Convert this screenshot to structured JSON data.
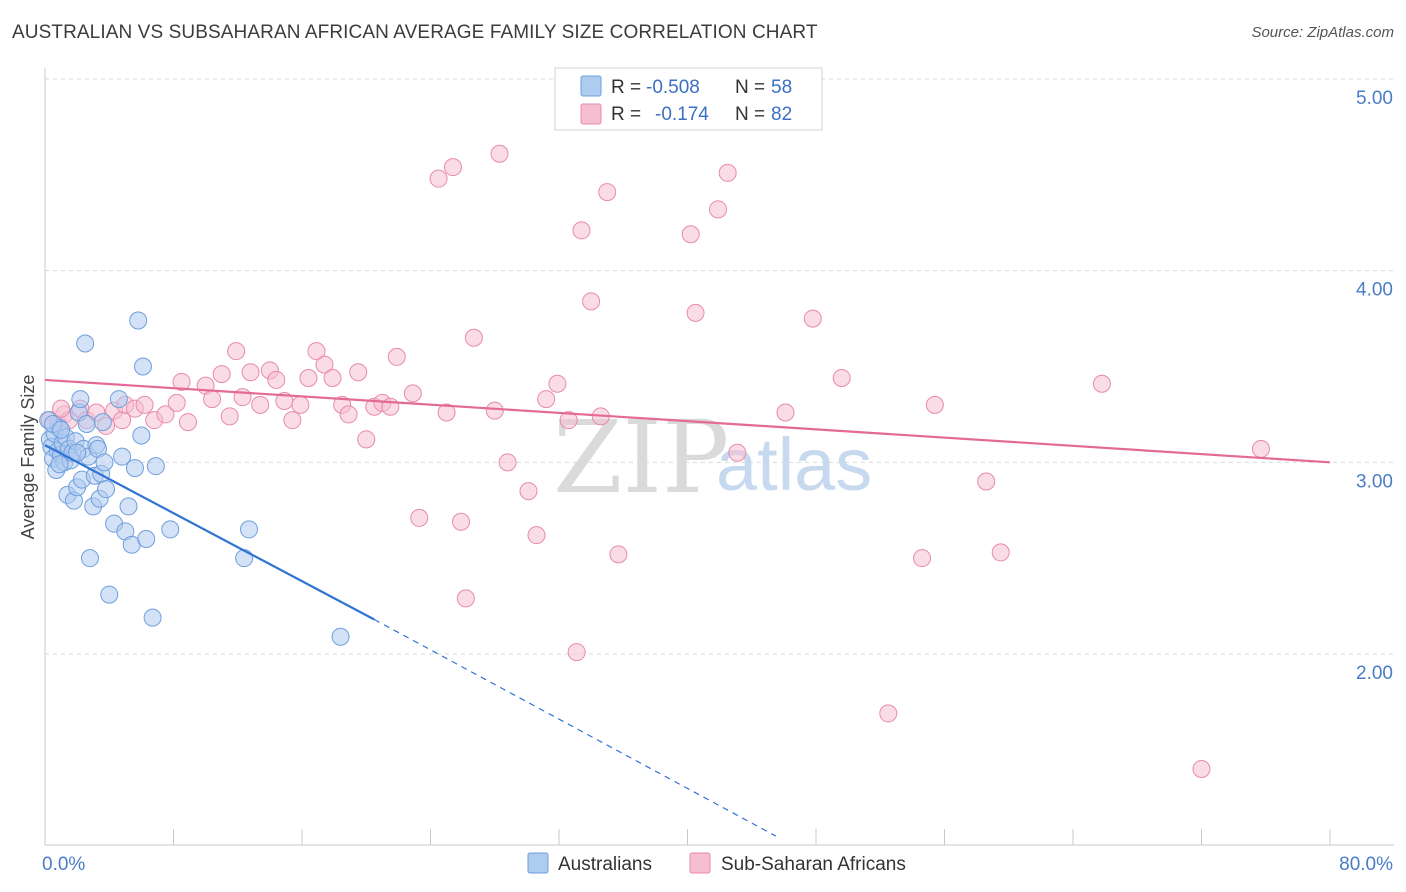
{
  "title": "AUSTRALIAN VS SUBSAHARAN AFRICAN AVERAGE FAMILY SIZE CORRELATION CHART",
  "source": "Source: ZipAtlas.com",
  "watermark": {
    "part1": "ZIP",
    "part2": "atlas"
  },
  "legend_top": [
    {
      "r_label": "R = ",
      "r_value": "-0.508",
      "n_label": "N = ",
      "n_value": "58"
    },
    {
      "r_label": "R = ",
      "r_value": "-0.174",
      "n_label": "N = ",
      "n_value": "82"
    }
  ],
  "legend_bottom": [
    "Australians",
    "Sub-Saharan Africans"
  ],
  "colors": {
    "australians_fill": "#aecbf0",
    "australians_stroke": "#6f9fdc",
    "australians_line": "#2f74d3",
    "ssa_fill": "#f6bfd1",
    "ssa_stroke": "#e88aab",
    "ssa_line": "#e36a95",
    "grid": "#d9d9d9",
    "axis_text": "#4a7cc8"
  },
  "chart_data": {
    "type": "scatter",
    "title": "AUSTRALIAN VS SUBSAHARAN AFRICAN AVERAGE FAMILY SIZE CORRELATION CHART",
    "xlabel": "",
    "ylabel": "Average Family Size",
    "xlim": [
      0,
      80
    ],
    "ylim": [
      1.0,
      5.15
    ],
    "x_tick_labels": [
      "0.0%",
      "80.0%"
    ],
    "y_ticks": [
      2.0,
      3.0,
      4.0,
      5.0
    ],
    "y_tick_labels": [
      "2.00",
      "3.00",
      "4.00",
      "5.00"
    ],
    "grid": "horizontal dashed",
    "legend_position": "top-center",
    "series": [
      {
        "name": "Australians",
        "R": -0.508,
        "N": 58,
        "trend": {
          "x0": 0,
          "y0": 3.09,
          "x1": 20.5,
          "y1": 2.18,
          "dashed_to_x": 45.5,
          "dashed_to_y": 1.05
        },
        "points": [
          [
            0.3,
            3.12
          ],
          [
            0.4,
            3.08
          ],
          [
            0.5,
            3.02
          ],
          [
            0.6,
            3.15
          ],
          [
            0.7,
            2.96
          ],
          [
            0.8,
            3.06
          ],
          [
            0.9,
            3.18
          ],
          [
            1.0,
            3.04
          ],
          [
            1.1,
            3.1
          ],
          [
            1.2,
            3.0
          ],
          [
            1.3,
            3.13
          ],
          [
            1.4,
            2.83
          ],
          [
            1.5,
            3.07
          ],
          [
            1.6,
            3.01
          ],
          [
            1.7,
            3.05
          ],
          [
            1.8,
            2.8
          ],
          [
            1.9,
            3.11
          ],
          [
            2.0,
            2.87
          ],
          [
            2.1,
            3.26
          ],
          [
            2.2,
            3.33
          ],
          [
            2.3,
            2.91
          ],
          [
            2.4,
            3.07
          ],
          [
            2.5,
            3.62
          ],
          [
            2.6,
            3.2
          ],
          [
            2.7,
            3.03
          ],
          [
            2.8,
            2.5
          ],
          [
            3.0,
            2.77
          ],
          [
            3.1,
            2.93
          ],
          [
            3.2,
            3.09
          ],
          [
            3.3,
            3.07
          ],
          [
            3.4,
            2.81
          ],
          [
            3.5,
            2.94
          ],
          [
            3.6,
            3.21
          ],
          [
            3.7,
            3.0
          ],
          [
            3.8,
            2.86
          ],
          [
            4.0,
            2.31
          ],
          [
            4.3,
            2.68
          ],
          [
            4.6,
            3.33
          ],
          [
            4.8,
            3.03
          ],
          [
            5.0,
            2.64
          ],
          [
            5.2,
            2.77
          ],
          [
            5.4,
            2.57
          ],
          [
            5.6,
            2.97
          ],
          [
            5.8,
            3.74
          ],
          [
            6.0,
            3.14
          ],
          [
            6.1,
            3.5
          ],
          [
            6.3,
            2.6
          ],
          [
            6.7,
            2.19
          ],
          [
            6.9,
            2.98
          ],
          [
            7.8,
            2.65
          ],
          [
            12.4,
            2.5
          ],
          [
            12.7,
            2.65
          ],
          [
            18.4,
            2.09
          ],
          [
            0.2,
            3.22
          ],
          [
            0.5,
            3.2
          ],
          [
            1.0,
            3.17
          ],
          [
            2.0,
            3.05
          ],
          [
            0.9,
            2.99
          ]
        ]
      },
      {
        "name": "Sub-Saharan Africans",
        "R": -0.174,
        "N": 82,
        "trend": {
          "x0": 0,
          "y0": 3.43,
          "x1": 80,
          "y1": 3.0
        },
        "points": [
          [
            0.3,
            3.22
          ],
          [
            0.8,
            3.2
          ],
          [
            1.2,
            3.25
          ],
          [
            1.5,
            3.22
          ],
          [
            2.2,
            3.28
          ],
          [
            2.6,
            3.22
          ],
          [
            3.2,
            3.26
          ],
          [
            3.8,
            3.19
          ],
          [
            4.3,
            3.27
          ],
          [
            4.8,
            3.22
          ],
          [
            5.0,
            3.3
          ],
          [
            5.6,
            3.28
          ],
          [
            6.2,
            3.3
          ],
          [
            6.8,
            3.22
          ],
          [
            7.5,
            3.25
          ],
          [
            8.2,
            3.31
          ],
          [
            8.5,
            3.42
          ],
          [
            8.9,
            3.21
          ],
          [
            10.0,
            3.4
          ],
          [
            10.4,
            3.33
          ],
          [
            11.0,
            3.46
          ],
          [
            11.5,
            3.24
          ],
          [
            11.9,
            3.58
          ],
          [
            12.3,
            3.34
          ],
          [
            12.8,
            3.47
          ],
          [
            13.4,
            3.3
          ],
          [
            14.0,
            3.48
          ],
          [
            14.4,
            3.43
          ],
          [
            14.9,
            3.32
          ],
          [
            15.4,
            3.22
          ],
          [
            15.9,
            3.3
          ],
          [
            16.4,
            3.44
          ],
          [
            16.9,
            3.58
          ],
          [
            17.4,
            3.51
          ],
          [
            17.9,
            3.44
          ],
          [
            18.5,
            3.3
          ],
          [
            18.9,
            3.25
          ],
          [
            19.5,
            3.47
          ],
          [
            20.0,
            3.12
          ],
          [
            20.5,
            3.29
          ],
          [
            21.0,
            3.31
          ],
          [
            21.5,
            3.29
          ],
          [
            21.9,
            3.55
          ],
          [
            22.9,
            3.36
          ],
          [
            23.3,
            2.71
          ],
          [
            24.5,
            4.48
          ],
          [
            25.0,
            3.26
          ],
          [
            25.4,
            4.54
          ],
          [
            25.9,
            2.69
          ],
          [
            26.2,
            2.29
          ],
          [
            26.7,
            3.65
          ],
          [
            28.0,
            3.27
          ],
          [
            28.3,
            4.61
          ],
          [
            28.8,
            3.0
          ],
          [
            30.1,
            2.85
          ],
          [
            30.6,
            2.62
          ],
          [
            31.2,
            3.33
          ],
          [
            31.9,
            3.41
          ],
          [
            32.6,
            3.22
          ],
          [
            33.1,
            2.01
          ],
          [
            33.4,
            4.21
          ],
          [
            34.0,
            3.84
          ],
          [
            34.6,
            3.24
          ],
          [
            35.0,
            4.41
          ],
          [
            35.7,
            2.52
          ],
          [
            40.2,
            4.19
          ],
          [
            40.5,
            3.78
          ],
          [
            41.9,
            4.32
          ],
          [
            42.5,
            4.51
          ],
          [
            43.1,
            3.05
          ],
          [
            46.1,
            3.26
          ],
          [
            47.8,
            3.75
          ],
          [
            49.6,
            3.44
          ],
          [
            52.5,
            1.69
          ],
          [
            54.6,
            2.5
          ],
          [
            55.4,
            3.3
          ],
          [
            58.6,
            2.9
          ],
          [
            59.5,
            2.53
          ],
          [
            65.8,
            3.41
          ],
          [
            72.0,
            1.4
          ],
          [
            75.7,
            3.07
          ],
          [
            1.0,
            3.28
          ]
        ]
      }
    ]
  }
}
